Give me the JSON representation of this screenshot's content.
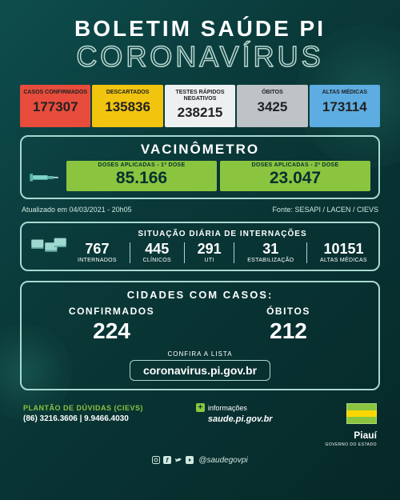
{
  "header": {
    "line1": "BOLETIM SAÚDE PI",
    "line2": "CORONAVÍRUS"
  },
  "stats": [
    {
      "label": "CASOS CONFIRMADOS",
      "value": "177307",
      "bg": "#e74c3c"
    },
    {
      "label": "DESCARTADOS",
      "value": "135836",
      "bg": "#f1c40f"
    },
    {
      "label": "TESTES RÁPIDOS NEGATIVOS",
      "value": "238215",
      "bg": "#ecf0f1"
    },
    {
      "label": "ÓBITOS",
      "value": "3425",
      "bg": "#bdc3c7"
    },
    {
      "label": "ALTAS MÉDICAS",
      "value": "173114",
      "bg": "#5dade2"
    }
  ],
  "vacinometro": {
    "title": "VACINÔMETRO",
    "doses": [
      {
        "label": "DOSES APLICADAS - 1ª DOSE",
        "value": "85.166"
      },
      {
        "label": "DOSES APLICADAS - 2ª DOSE",
        "value": "23.047"
      }
    ]
  },
  "update": {
    "left": "Atualizado em 04/03/2021 - 20h05",
    "right": "Fonte: SESAPI / LACEN / CIEVS"
  },
  "internacoes": {
    "title": "SITUAÇÃO DIÁRIA DE INTERNAÇÕES",
    "items": [
      {
        "value": "767",
        "label": "INTERNADOS"
      },
      {
        "value": "445",
        "label": "CLÍNICOS"
      },
      {
        "value": "291",
        "label": "UTI"
      },
      {
        "value": "31",
        "label": "ESTABILIZAÇÃO"
      },
      {
        "value": "10151",
        "label": "ALTAS MÉDICAS"
      }
    ]
  },
  "cidades": {
    "title": "CIDADES COM CASOS:",
    "cols": [
      {
        "label": "CONFIRMADOS",
        "value": "224"
      },
      {
        "label": "ÓBITOS",
        "value": "212"
      }
    ],
    "lista_label": "CONFIRA A LISTA",
    "lista_url": "coronavirus.pi.gov.br"
  },
  "footer": {
    "plantao_title": "PLANTÃO DE DÚVIDAS (CIEVS)",
    "plantao_phones": "(86) 3216.3606 | 9.9466.4030",
    "info_label": "informações",
    "info_site": "saude.pi.gov.br",
    "social_handle": "@saudegovpi",
    "state_name": "Piauí",
    "state_sub": "GOVERNO DO ESTADO"
  }
}
